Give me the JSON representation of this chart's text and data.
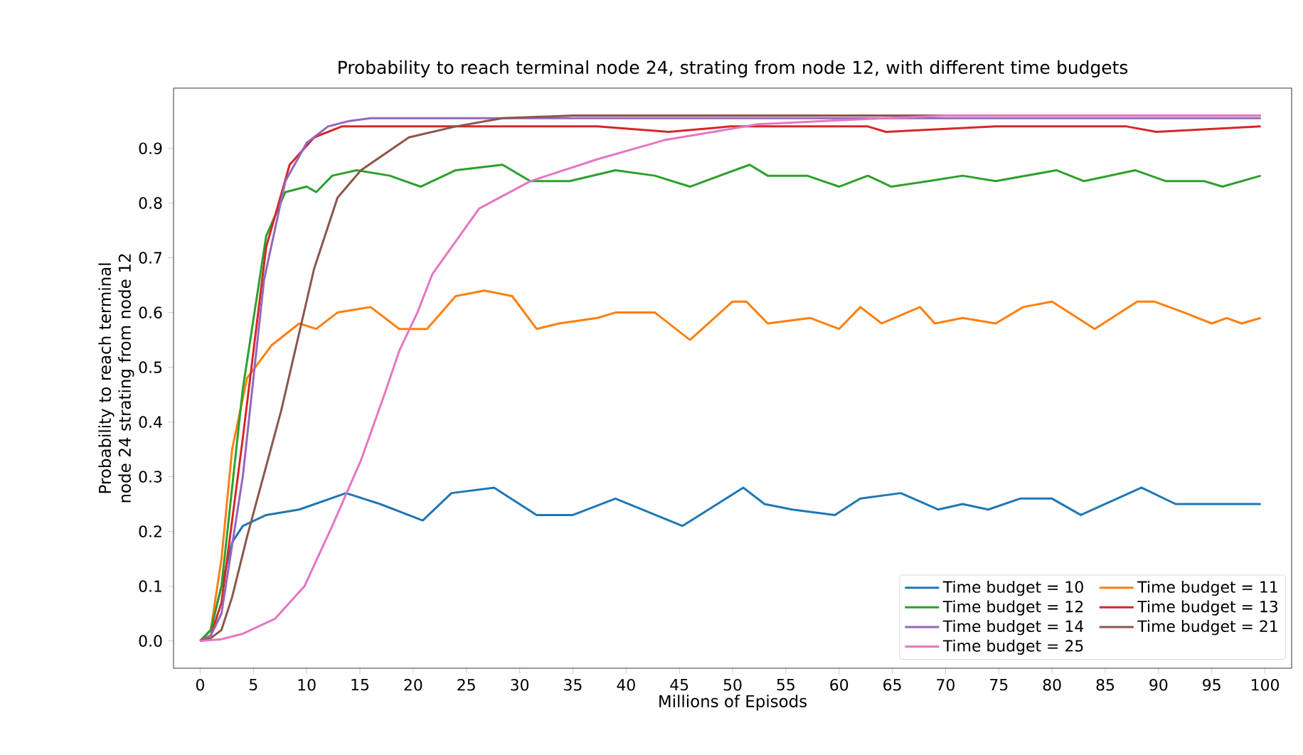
{
  "chart_data": {
    "type": "line",
    "title": "Probability to reach terminal node 24, strating from node 12, with different time budgets",
    "xlabel": "Millions of Episods",
    "ylabel": "Probability to reach terminal node 24 strating from node 12",
    "xlim": [
      -2.5,
      102.5
    ],
    "ylim": [
      -0.05,
      1.01
    ],
    "xticks": [
      0,
      5,
      10,
      15,
      20,
      25,
      30,
      35,
      40,
      45,
      50,
      55,
      60,
      65,
      70,
      75,
      80,
      85,
      90,
      95,
      100
    ],
    "yticks": [
      {
        "value": 0,
        "label": "0.0"
      },
      0.1,
      0.2,
      0.3,
      0.4,
      0.5,
      0.6,
      0.7,
      0.8,
      0.9
    ],
    "grid": false,
    "legend": "bottom right",
    "series": [
      {
        "name": "Time budget = 10",
        "color": "#1f77b4",
        "x": [
          0,
          1,
          2,
          3,
          4,
          6.2,
          9.3,
          13.7,
          16.9,
          20.9,
          23.6,
          27.6,
          31.6,
          35,
          39,
          45.3,
          51,
          53,
          55.6,
          59.6,
          62,
          65.8,
          69.3,
          71.6,
          74,
          77,
          80,
          82.7,
          88.4,
          91.6,
          99.6
        ],
        "values": [
          0,
          0.02,
          0.1,
          0.18,
          0.21,
          0.23,
          0.24,
          0.27,
          0.25,
          0.22,
          0.27,
          0.28,
          0.23,
          0.23,
          0.26,
          0.21,
          0.28,
          0.25,
          0.24,
          0.23,
          0.26,
          0.27,
          0.24,
          0.25,
          0.24,
          0.26,
          0.26,
          0.23,
          0.28,
          0.25,
          0.25
        ]
      },
      {
        "name": "Time budget = 11",
        "color": "#ff7f0e",
        "x": [
          0,
          1,
          2,
          3,
          4.4,
          6.7,
          9.3,
          10.9,
          12.9,
          16,
          18.7,
          21.3,
          24,
          26.7,
          29.3,
          31.6,
          33.7,
          37.3,
          39,
          42.7,
          46,
          50,
          51.3,
          53.3,
          57.3,
          60,
          62,
          64,
          67.6,
          69,
          71.6,
          74.7,
          77.3,
          80,
          84,
          88,
          89.6,
          92.4,
          95,
          96.4,
          97.8,
          99.6
        ],
        "values": [
          0,
          0.02,
          0.15,
          0.35,
          0.48,
          0.54,
          0.58,
          0.57,
          0.6,
          0.61,
          0.57,
          0.57,
          0.63,
          0.64,
          0.63,
          0.57,
          0.58,
          0.59,
          0.6,
          0.6,
          0.55,
          0.62,
          0.62,
          0.58,
          0.59,
          0.57,
          0.61,
          0.58,
          0.61,
          0.58,
          0.59,
          0.58,
          0.61,
          0.62,
          0.57,
          0.62,
          0.62,
          0.6,
          0.58,
          0.59,
          0.58,
          0.59
        ]
      },
      {
        "name": "Time budget = 12",
        "color": "#2ca02c",
        "x": [
          0,
          1,
          2,
          4,
          6.2,
          8,
          10,
          10.9,
          12.4,
          14.7,
          17.8,
          20.7,
          24,
          28.4,
          31,
          34.7,
          39,
          42.7,
          46,
          51.6,
          53.3,
          57,
          60,
          62.7,
          64.9,
          68.4,
          71.6,
          74.7,
          80.4,
          83,
          87.8,
          90.7,
          94.3,
          96,
          99.6
        ],
        "values": [
          0,
          0.02,
          0.1,
          0.46,
          0.74,
          0.82,
          0.83,
          0.82,
          0.85,
          0.86,
          0.85,
          0.83,
          0.86,
          0.87,
          0.84,
          0.84,
          0.86,
          0.85,
          0.83,
          0.87,
          0.85,
          0.85,
          0.83,
          0.85,
          0.83,
          0.84,
          0.85,
          0.84,
          0.86,
          0.84,
          0.86,
          0.84,
          0.84,
          0.83,
          0.85
        ]
      },
      {
        "name": "Time budget = 13",
        "color": "#d62728",
        "x": [
          0,
          1,
          2,
          4,
          6.2,
          8.4,
          10.7,
          13.3,
          17.3,
          20.4,
          24,
          28.4,
          31.6,
          37.3,
          44,
          49.8,
          62.7,
          64.4,
          74.7,
          87,
          89.8,
          99.6
        ],
        "values": [
          0,
          0.01,
          0.07,
          0.37,
          0.72,
          0.87,
          0.92,
          0.94,
          0.94,
          0.94,
          0.94,
          0.94,
          0.94,
          0.94,
          0.93,
          0.94,
          0.94,
          0.93,
          0.94,
          0.94,
          0.93,
          0.94
        ]
      },
      {
        "name": "Time budget = 14",
        "color": "#9467bd",
        "x": [
          0,
          1,
          2,
          4,
          6,
          8,
          10,
          12,
          14,
          16,
          30,
          50,
          70,
          99.6
        ],
        "values": [
          0,
          0.01,
          0.05,
          0.3,
          0.66,
          0.84,
          0.91,
          0.94,
          0.95,
          0.955,
          0.955,
          0.955,
          0.955,
          0.955
        ]
      },
      {
        "name": "Time budget = 21",
        "color": "#8c564b",
        "x": [
          0,
          1,
          2,
          3,
          4.4,
          7.6,
          10.7,
          12.9,
          15.1,
          19.6,
          24,
          28.4,
          35,
          50,
          70,
          99.6
        ],
        "values": [
          0,
          0.005,
          0.02,
          0.08,
          0.19,
          0.42,
          0.68,
          0.81,
          0.86,
          0.92,
          0.94,
          0.955,
          0.96,
          0.96,
          0.96,
          0.96
        ]
      },
      {
        "name": "Time budget = 25",
        "color": "#e377c2",
        "x": [
          0,
          2,
          4,
          7,
          9.8,
          12.4,
          15.1,
          17.3,
          18.7,
          20.4,
          21.8,
          26.2,
          31,
          37.3,
          43.6,
          52.4,
          61,
          70,
          99.6
        ],
        "values": [
          0,
          0.003,
          0.013,
          0.04,
          0.1,
          0.21,
          0.33,
          0.45,
          0.53,
          0.6,
          0.67,
          0.79,
          0.84,
          0.88,
          0.915,
          0.944,
          0.952,
          0.96,
          0.96
        ]
      }
    ]
  }
}
